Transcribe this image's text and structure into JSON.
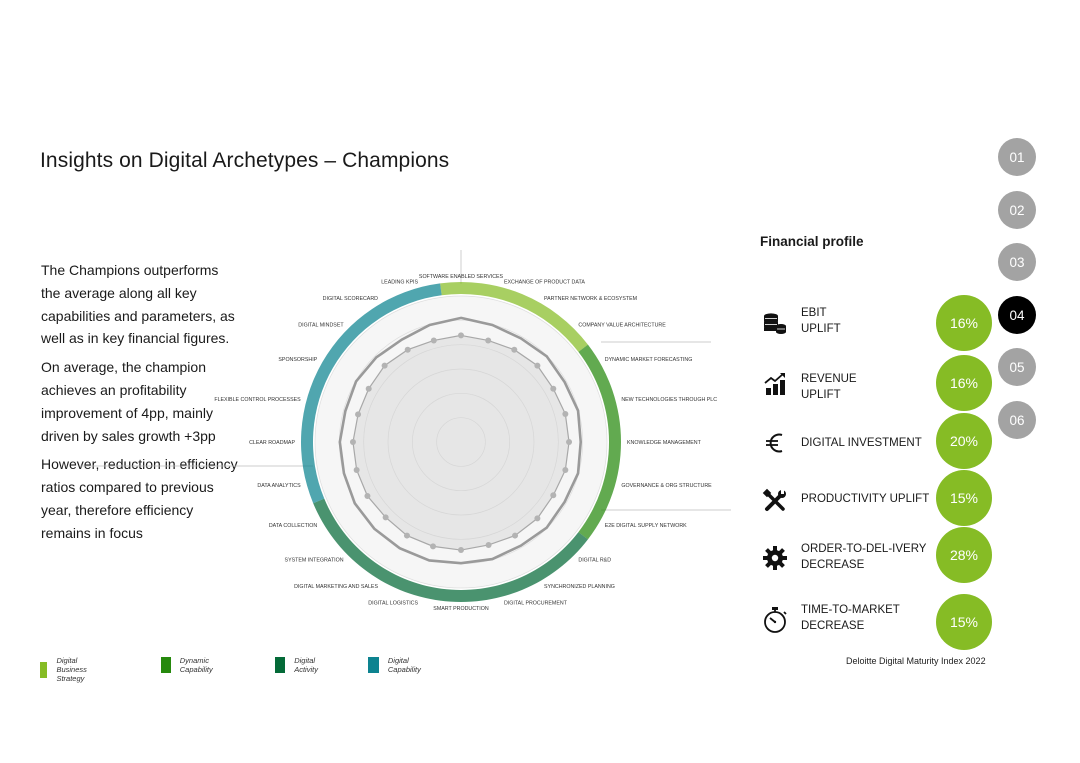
{
  "title": "Insights on Digital Archetypes – Champions",
  "body_paragraphs": [
    "The Champions outperforms the average along all key capabilities and parameters, as well as in key financial figures.",
    "On average, the champion achieves an profitability improvement of  4pp, mainly driven by sales growth +3pp",
    "However, reduction in efficiency ratios compared to previous year, therefore efficiency remains in focus"
  ],
  "financial_profile": {
    "title": "Financial profile",
    "items": [
      {
        "label_lines": [
          "EBIT",
          "UPLIFT"
        ],
        "value": "16%",
        "icon": "coins-stack-icon"
      },
      {
        "label_lines": [
          "REVENUE",
          "UPLIFT"
        ],
        "value": "16%",
        "icon": "growth-chart-icon"
      },
      {
        "label_lines": [
          "DIGITAL INVESTMENT"
        ],
        "value": "20%",
        "icon": "euro-icon"
      },
      {
        "label_lines": [
          "PRODUCTIVITY UPLIFT"
        ],
        "value": "15%",
        "icon": "tools-icon"
      },
      {
        "label_lines": [
          "ORDER-TO-DEL-IVERY",
          "DECREASE"
        ],
        "value": "28%",
        "icon": "gear-icon"
      },
      {
        "label_lines": [
          "TIME-TO-MARKET",
          "DECREASE"
        ],
        "value": "15%",
        "icon": "stopwatch-icon"
      }
    ],
    "accent_color": "#86bc25"
  },
  "navigation": {
    "pages": [
      "01",
      "02",
      "03",
      "04",
      "05",
      "06"
    ],
    "active": "04"
  },
  "legend": [
    {
      "label": "Digital Business Strategy",
      "color": "#86bc25"
    },
    {
      "label": "Dynamic Capability",
      "color": "#26890d"
    },
    {
      "label": "Digital Activity",
      "color": "#046a38"
    },
    {
      "label": "Digital Capability",
      "color": "#0d8390"
    }
  ],
  "source": "Deloitte Digital Maturity Index 2022",
  "chart_data": {
    "type": "radar",
    "categories": [
      "SOFTWARE ENABLED SERVICES",
      "EXCHANGE OF PRODUCT DATA",
      "PARTNER NETWORK & ECOSYSTEM",
      "COMPANY VALUE ARCHITECTURE",
      "DYNAMIC MARKET FORECASTING",
      "NEW TECHNOLOGIES THROUGH PLC",
      "KNOWLEDGE MANAGEMENT",
      "GOVERNANCE & ORG STRUCTURE",
      "E2E DIGITAL SUPPLY NETWORK",
      "DIGITAL R&D",
      "SYNCHRONIZED PLANNING",
      "DIGITAL PROCUREMENT",
      "SMART PRODUCTION",
      "DIGITAL LOGISTICS",
      "DIGITAL MARKETING AND SALES",
      "SYSTEM INTEGRATION",
      "DATA COLLECTION",
      "DATA ANALYTICS",
      "CLEAR ROADMAP",
      "FLEXIBLE CONTROL PROCESSES",
      "SPONSORSHIP",
      "DIGITAL MINDSET",
      "DIGITAL SCORECARD",
      "LEADING KPIs"
    ],
    "groups": [
      {
        "name": "Digital Business Strategy",
        "color": "#86bc25",
        "start": 0,
        "end": 4
      },
      {
        "name": "Dynamic Capability",
        "color": "#26890d",
        "start": 4,
        "end": 9
      },
      {
        "name": "Digital Activity",
        "color": "#046a38",
        "start": 9,
        "end": 17
      },
      {
        "name": "Digital Capability",
        "color": "#0d8390",
        "start": 17,
        "end": 24
      }
    ],
    "series": [
      {
        "values": [
          0.85,
          0.83,
          0.82,
          0.83,
          0.82,
          0.83,
          0.82,
          0.83,
          0.82,
          0.83,
          0.82,
          0.83,
          0.83,
          0.84,
          0.84,
          0.84,
          0.84,
          0.83,
          0.83,
          0.82,
          0.83,
          0.82,
          0.81,
          0.83
        ],
        "color": "#9a9a9a",
        "markers": false
      },
      {
        "values": [
          0.73,
          0.72,
          0.73,
          0.74,
          0.73,
          0.74,
          0.74,
          0.74,
          0.73,
          0.74,
          0.74,
          0.73,
          0.74,
          0.74,
          0.74,
          0.73,
          0.74,
          0.74,
          0.74,
          0.73,
          0.73,
          0.74,
          0.73,
          0.72
        ],
        "color": "#a8a8a8",
        "markers": true
      }
    ],
    "rings": 6,
    "grid": true
  }
}
